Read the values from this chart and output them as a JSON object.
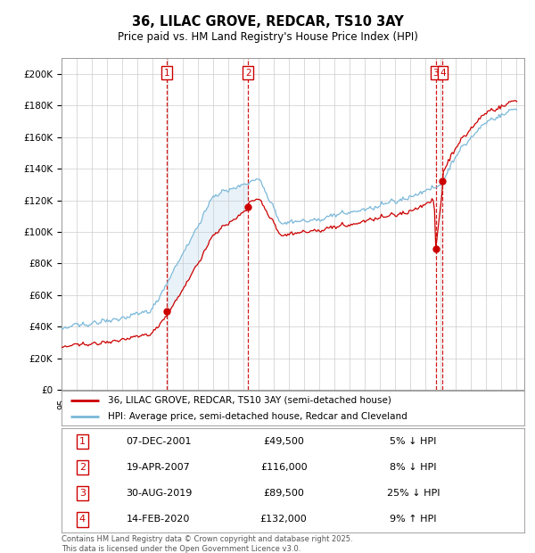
{
  "title": "36, LILAC GROVE, REDCAR, TS10 3AY",
  "subtitle": "Price paid vs. HM Land Registry's House Price Index (HPI)",
  "ylabel_ticks": [
    "£0",
    "£20K",
    "£40K",
    "£60K",
    "£80K",
    "£100K",
    "£120K",
    "£140K",
    "£160K",
    "£180K",
    "£200K"
  ],
  "ytick_values": [
    0,
    20000,
    40000,
    60000,
    80000,
    100000,
    120000,
    140000,
    160000,
    180000,
    200000
  ],
  "ylim": [
    0,
    210000
  ],
  "xlim_start": 1995.0,
  "xlim_end": 2025.5,
  "legend_entries": [
    "36, LILAC GROVE, REDCAR, TS10 3AY (semi-detached house)",
    "HPI: Average price, semi-detached house, Redcar and Cleveland"
  ],
  "legend_colors": [
    "#cc0000",
    "#7ab8d9"
  ],
  "transactions": [
    {
      "num": 1,
      "date": "07-DEC-2001",
      "price": 49500,
      "year": 2001.92,
      "pct": "5%",
      "dir": "↓"
    },
    {
      "num": 2,
      "date": "19-APR-2007",
      "price": 116000,
      "year": 2007.3,
      "pct": "8%",
      "dir": "↓"
    },
    {
      "num": 3,
      "date": "30-AUG-2019",
      "price": 89500,
      "year": 2019.66,
      "pct": "25%",
      "dir": "↓"
    },
    {
      "num": 4,
      "date": "14-FEB-2020",
      "price": 132000,
      "year": 2020.12,
      "pct": "9%",
      "dir": "↑"
    }
  ],
  "footer": "Contains HM Land Registry data © Crown copyright and database right 2025.\nThis data is licensed under the Open Government Licence v3.0.",
  "background_color": "#ffffff",
  "plot_bg_color": "#ffffff",
  "grid_color": "#cccccc",
  "hpi_line_color": "#7ab8d9",
  "price_line_color": "#cc0000",
  "shade_color": "#ddeeff",
  "transaction_box_color": "#cc0000",
  "dashed_line_color": "#cc0000",
  "shade_between_t1_t2": true
}
